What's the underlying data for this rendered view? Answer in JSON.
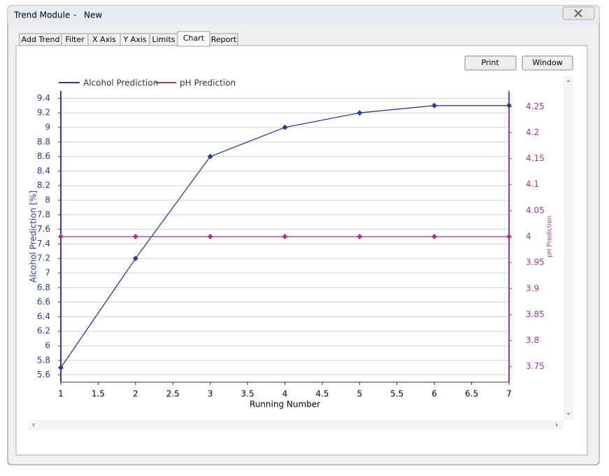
{
  "window": {
    "title": "Trend Module",
    "separator": "-",
    "document": "New",
    "tabs": [
      "Add Trend",
      "Filter",
      "X Axis",
      "Y Axis",
      "Limits",
      "Chart",
      "Report"
    ],
    "buttons": [
      "Print",
      "Window"
    ]
  },
  "chart_data": {
    "type": "line",
    "x": [
      1,
      2,
      3,
      4,
      5,
      6,
      7
    ],
    "xlim": [
      1,
      7
    ],
    "xticks": [
      1,
      1.5,
      2,
      2.5,
      3,
      3.5,
      4,
      4.5,
      5,
      5.5,
      6,
      6.5,
      7
    ],
    "xlabel": "Running Number",
    "ylabel": "Alcohol Prediction [%]",
    "y2label": "pH Prediction",
    "ylim": [
      5.5,
      9.5
    ],
    "yticks": [
      5.6,
      5.8,
      6,
      6.2,
      6.4,
      6.6,
      6.8,
      7,
      7.2,
      7.4,
      7.6,
      7.8,
      8,
      8.2,
      8.4,
      8.6,
      8.8,
      9,
      9.2,
      9.4
    ],
    "y2lim": [
      3.72,
      4.28
    ],
    "y2ticks": [
      3.75,
      3.8,
      3.85,
      3.9,
      3.95,
      4,
      4.05,
      4.1,
      4.15,
      4.2,
      4.25
    ],
    "grid": true,
    "legend": "top-left",
    "series": [
      {
        "name": "Alcohol Prediction",
        "color": "#2b3c8c",
        "values": [
          5.7,
          7.2,
          8.6,
          9.0,
          9.2,
          9.3,
          9.3
        ]
      },
      {
        "name": "pH Prediction",
        "color": "#a3358c",
        "axis": "y2",
        "values": [
          4,
          4,
          4,
          4,
          4,
          4,
          4
        ]
      }
    ]
  }
}
